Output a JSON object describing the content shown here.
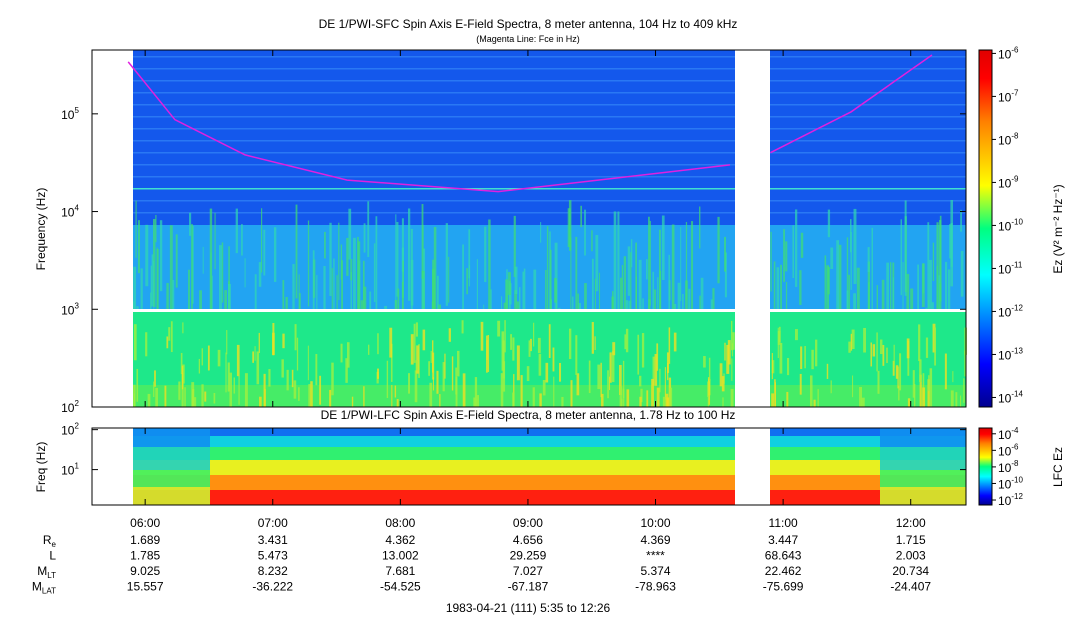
{
  "chart_data": [
    {
      "type": "spectrogram",
      "title": "DE 1/PWI-SFC  Spin Axis E-Field Spectra, 8 meter antenna, 104 Hz to 409 kHz",
      "subtitle": "(Magenta Line: Fce in Hz)",
      "y_label": "Frequency (Hz)",
      "xlim": [
        "1983-04-21T05:35",
        "1983-04-21T12:26"
      ],
      "ylim": [
        100,
        450000
      ],
      "log_y": true,
      "yticks": [
        {
          "value": 100,
          "label": "10",
          "exponent": "2"
        },
        {
          "value": 1000,
          "label": "10",
          "exponent": "3"
        },
        {
          "value": 10000,
          "label": "10",
          "exponent": "4"
        },
        {
          "value": 100000,
          "label": "10",
          "exponent": "5"
        }
      ],
      "colorbar": {
        "label": "Ez (V² m⁻² Hz⁻¹)",
        "clim": [
          6e-15,
          1.2e-06
        ],
        "ticks": [
          {
            "value": 1e-06,
            "label": "10",
            "exponent": "-6"
          },
          {
            "value": 1e-07,
            "label": "10",
            "exponent": "-7"
          },
          {
            "value": 1e-08,
            "label": "10",
            "exponent": "-8"
          },
          {
            "value": 1e-09,
            "label": "10",
            "exponent": "-9"
          },
          {
            "value": 1e-10,
            "label": "10",
            "exponent": "-10"
          },
          {
            "value": 1e-11,
            "label": "10",
            "exponent": "-11"
          },
          {
            "value": 1e-12,
            "label": "10",
            "exponent": "-12"
          },
          {
            "value": 1e-13,
            "label": "10",
            "exponent": "-13"
          },
          {
            "value": 1e-14,
            "label": "10",
            "exponent": "-14"
          }
        ]
      },
      "series": [
        {
          "color": "#e020e0",
          "x": [
            "1983-04-21T05:52",
            "1983-04-21T06:14",
            "1983-04-21T06:47",
            "1983-04-21T07:35",
            "1983-04-21T08:46",
            "1983-04-21T09:33",
            "1983-04-21T10:35",
            "1983-04-21T10:45",
            "1983-04-21T10:54",
            "1983-04-21T11:32",
            "1983-04-21T12:10"
          ],
          "values": [
            340000,
            87000,
            38000,
            21000,
            16000,
            21000,
            30000,
            null,
            40000,
            105000,
            400000
          ]
        }
      ]
    },
    {
      "type": "spectrogram",
      "title": "DE 1/PWI-LFC  Spin Axis E-Field Spectra, 8 meter antenna, 1.78 Hz to 100 Hz",
      "y_label": "Freq (Hz)",
      "xlim": [
        "1983-04-21T05:35",
        "1983-04-21T12:26"
      ],
      "ylim": [
        1.3,
        110
      ],
      "log_y": true,
      "yticks": [
        {
          "value": 10,
          "label": "10",
          "exponent": "1"
        },
        {
          "value": 100,
          "label": "10",
          "exponent": "2"
        }
      ],
      "xticks": [
        {
          "value": "1983-04-21T06:00",
          "label": "06:00"
        },
        {
          "value": "1983-04-21T07:00",
          "label": "07:00"
        },
        {
          "value": "1983-04-21T08:00",
          "label": "08:00"
        },
        {
          "value": "1983-04-21T09:00",
          "label": "09:00"
        },
        {
          "value": "1983-04-21T10:00",
          "label": "10:00"
        },
        {
          "value": "1983-04-21T11:00",
          "label": "11:00"
        },
        {
          "value": "1983-04-21T12:00",
          "label": "12:00"
        }
      ],
      "colorbar": {
        "label": "LFC Ez",
        "clim": [
          2.5e-13,
          0.0005
        ],
        "ticks": [
          {
            "value": 0.0001,
            "label": "10",
            "exponent": "-4"
          },
          {
            "value": 1e-06,
            "label": "10",
            "exponent": "-6"
          },
          {
            "value": 1e-08,
            "label": "10",
            "exponent": "-8"
          },
          {
            "value": 1e-10,
            "label": "10",
            "exponent": "-10"
          },
          {
            "value": 1e-12,
            "label": "10",
            "exponent": "-12"
          }
        ]
      }
    }
  ],
  "ephemeris": {
    "rows": [
      {
        "label": "R",
        "sub": "e",
        "values": [
          1.689,
          3.431,
          4.362,
          4.656,
          4.369,
          3.447,
          1.715
        ]
      },
      {
        "label": "L",
        "values": [
          1.785,
          5.473,
          13.002,
          29.259,
          "****",
          68.643,
          2.003
        ]
      },
      {
        "label": "M",
        "sub": "LT",
        "values": [
          9.025,
          8.232,
          7.681,
          7.027,
          5.374,
          22.462,
          20.734
        ]
      },
      {
        "label": "M",
        "sub": "LAT",
        "values": [
          15.557,
          -36.222,
          -54.525,
          -67.187,
          -78.963,
          -75.699,
          -24.407
        ]
      }
    ]
  },
  "footer": "1983-04-21 (111) 5:35 to 12:26"
}
